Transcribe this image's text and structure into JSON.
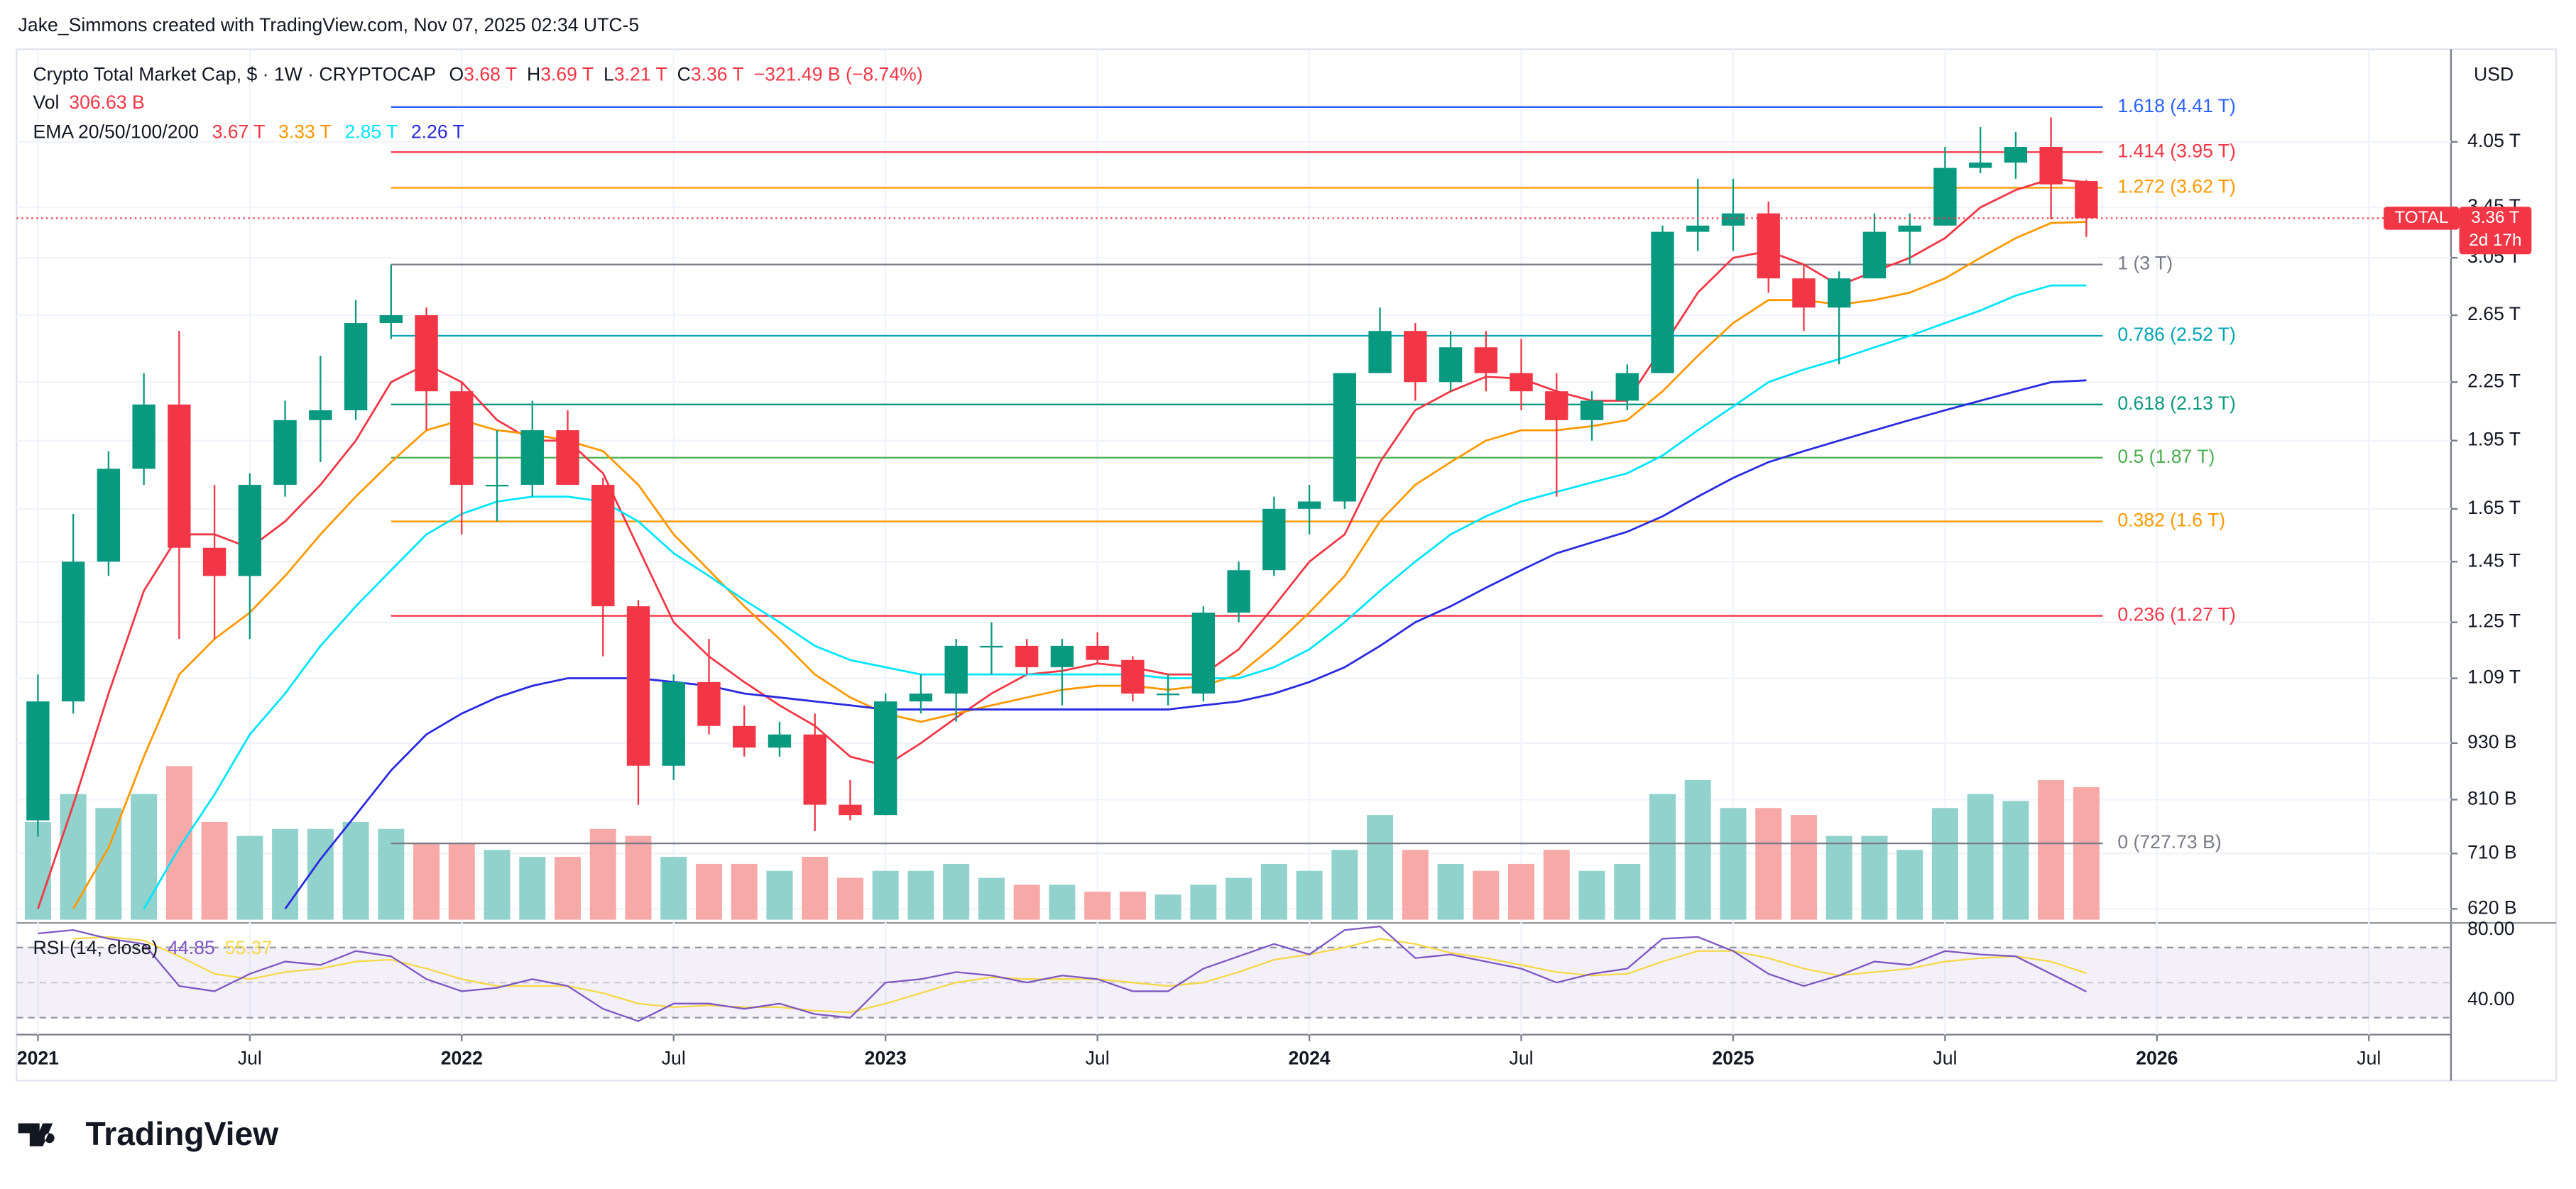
{
  "header": {
    "attribution": "Jake_Simmons created with TradingView.com, Nov 07, 2025 02:34 UTC-5"
  },
  "chart_data": {
    "type": "candlestick",
    "title": "Crypto Total Market Cap, $ · 1W · CRYPTOCAP",
    "ohlc_legend": [
      {
        "key": "O",
        "value": 3.68,
        "label": "3.68 T"
      },
      {
        "key": "H",
        "value": 3.69,
        "label": "3.69 T"
      },
      {
        "key": "L",
        "value": 3.21,
        "label": "3.21 T"
      },
      {
        "key": "C",
        "value": 3.36,
        "label": "3.36 T"
      }
    ],
    "change_label": "−321.49 B (−8.74%)",
    "volume_legend": {
      "name": "Vol",
      "label": "306.63 B"
    },
    "ema_legend": "EMA 20/50/100/200",
    "currency": "USD",
    "x": [
      "2021-01",
      "2021-02",
      "2021-03",
      "2021-04",
      "2021-05",
      "2021-06",
      "2021-07",
      "2021-08",
      "2021-09",
      "2021-10",
      "2021-11",
      "2021-12",
      "2022-01",
      "2022-02",
      "2022-03",
      "2022-04",
      "2022-05",
      "2022-06",
      "2022-07",
      "2022-08",
      "2022-09",
      "2022-10",
      "2022-11",
      "2022-12",
      "2023-01",
      "2023-02",
      "2023-03",
      "2023-04",
      "2023-05",
      "2023-06",
      "2023-07",
      "2023-08",
      "2023-09",
      "2023-10",
      "2023-11",
      "2023-12",
      "2024-01",
      "2024-02",
      "2024-03",
      "2024-04",
      "2024-05",
      "2024-06",
      "2024-07",
      "2024-08",
      "2024-09",
      "2024-10",
      "2024-11",
      "2024-12",
      "2025-01",
      "2025-02",
      "2025-03",
      "2025-04",
      "2025-05",
      "2025-06",
      "2025-07",
      "2025-08",
      "2025-09",
      "2025-10",
      "2025-11"
    ],
    "xlim": [
      "2020-12",
      "2026-09"
    ],
    "xticks": [
      {
        "value": "2021-01",
        "label": "2021"
      },
      {
        "value": "2021-07",
        "label": "Jul"
      },
      {
        "value": "2022-01",
        "label": "2022"
      },
      {
        "value": "2022-07",
        "label": "Jul"
      },
      {
        "value": "2023-01",
        "label": "2023"
      },
      {
        "value": "2023-07",
        "label": "Jul"
      },
      {
        "value": "2024-01",
        "label": "2024"
      },
      {
        "value": "2024-07",
        "label": "Jul"
      },
      {
        "value": "2025-01",
        "label": "2025"
      },
      {
        "value": "2025-07",
        "label": "Jul"
      },
      {
        "value": "2026-01",
        "label": "2026"
      },
      {
        "value": "2026-07",
        "label": "Jul"
      }
    ],
    "log_scale": true,
    "ylim": [
      0.599,
      5.08
    ],
    "yticks": [
      {
        "value": 4.05,
        "label": "4.05 T"
      },
      {
        "value": 3.45,
        "label": "3.45 T"
      },
      {
        "value": 3.05,
        "label": "3.05 T"
      },
      {
        "value": 2.65,
        "label": "2.65 T"
      },
      {
        "value": 2.25,
        "label": "2.25 T"
      },
      {
        "value": 1.95,
        "label": "1.95 T"
      },
      {
        "value": 1.65,
        "label": "1.65 T"
      },
      {
        "value": 1.45,
        "label": "1.45 T"
      },
      {
        "value": 1.25,
        "label": "1.25 T"
      },
      {
        "value": 1.09,
        "label": "1.09 T"
      },
      {
        "value": 0.93,
        "label": "930 B"
      },
      {
        "value": 0.81,
        "label": "810 B"
      },
      {
        "value": 0.71,
        "label": "710 B"
      },
      {
        "value": 0.62,
        "label": "620 B"
      }
    ],
    "grid": true,
    "up_color": "#089981",
    "down_color": "#f23645",
    "open": [
      0.77,
      1.03,
      1.45,
      1.82,
      2.13,
      1.5,
      1.4,
      1.75,
      2.05,
      2.1,
      2.6,
      2.65,
      2.2,
      1.75,
      1.75,
      2.0,
      1.75,
      1.3,
      0.88,
      1.08,
      0.97,
      0.92,
      0.95,
      0.8,
      0.78,
      1.03,
      1.05,
      1.18,
      1.18,
      1.12,
      1.18,
      1.14,
      1.05,
      1.05,
      1.28,
      1.42,
      1.65,
      1.68,
      2.3,
      2.55,
      2.25,
      2.45,
      2.3,
      2.2,
      2.05,
      2.15,
      2.3,
      3.25,
      3.3,
      3.4,
      2.9,
      2.7,
      2.9,
      3.25,
      3.3,
      3.8,
      3.85,
      4.0,
      3.68
    ],
    "high": [
      1.1,
      1.63,
      1.9,
      2.3,
      2.55,
      1.75,
      1.8,
      2.15,
      2.4,
      2.75,
      3.0,
      2.7,
      2.25,
      2.0,
      2.15,
      2.1,
      1.78,
      1.32,
      1.1,
      1.2,
      1.02,
      0.98,
      1.0,
      0.85,
      1.05,
      1.1,
      1.2,
      1.25,
      1.2,
      1.2,
      1.22,
      1.15,
      1.1,
      1.3,
      1.45,
      1.7,
      1.75,
      2.3,
      2.7,
      2.6,
      2.55,
      2.55,
      2.5,
      2.3,
      2.2,
      2.35,
      3.3,
      3.7,
      3.7,
      3.5,
      3.0,
      2.95,
      3.4,
      3.4,
      4.0,
      4.2,
      4.15,
      4.3,
      3.69
    ],
    "low": [
      0.74,
      1.0,
      1.4,
      1.75,
      1.2,
      1.2,
      1.2,
      1.7,
      1.85,
      2.05,
      2.5,
      2.0,
      1.55,
      1.6,
      1.7,
      1.75,
      1.15,
      0.8,
      0.85,
      0.95,
      0.9,
      0.9,
      0.75,
      0.77,
      0.78,
      1.0,
      0.98,
      1.1,
      1.1,
      1.02,
      1.13,
      1.03,
      1.02,
      1.03,
      1.25,
      1.4,
      1.55,
      1.65,
      2.3,
      2.15,
      2.2,
      2.2,
      2.1,
      1.7,
      1.95,
      2.1,
      2.3,
      3.1,
      3.1,
      2.8,
      2.55,
      2.35,
      2.9,
      3.0,
      3.3,
      3.75,
      3.7,
      3.35,
      3.21
    ],
    "close": [
      1.03,
      1.45,
      1.82,
      2.13,
      1.5,
      1.4,
      1.75,
      2.05,
      2.1,
      2.6,
      2.65,
      2.2,
      1.75,
      1.75,
      2.0,
      1.75,
      1.3,
      0.88,
      1.08,
      0.97,
      0.92,
      0.95,
      0.8,
      0.78,
      1.03,
      1.05,
      1.18,
      1.18,
      1.12,
      1.18,
      1.14,
      1.05,
      1.05,
      1.28,
      1.42,
      1.65,
      1.68,
      2.3,
      2.55,
      2.25,
      2.45,
      2.3,
      2.2,
      2.05,
      2.15,
      2.3,
      3.25,
      3.3,
      3.4,
      2.9,
      2.7,
      2.9,
      3.25,
      3.3,
      3.8,
      3.85,
      4.0,
      3.65,
      3.36
    ],
    "volume": {
      "values": [
        700,
        900,
        800,
        900,
        1100,
        700,
        600,
        650,
        650,
        700,
        650,
        550,
        550,
        500,
        450,
        450,
        650,
        600,
        450,
        400,
        400,
        350,
        450,
        300,
        350,
        350,
        400,
        300,
        250,
        250,
        200,
        200,
        180,
        250,
        300,
        400,
        350,
        500,
        750,
        500,
        400,
        350,
        400,
        500,
        350,
        400,
        900,
        1000,
        800,
        800,
        750,
        600,
        600,
        500,
        800,
        900,
        850,
        1000,
        950
      ],
      "ylim": [
        0,
        2000
      ],
      "up_color": "#92d2cc",
      "down_color": "#f7a9a7"
    },
    "series": [
      {
        "color": "#f23645",
        "value_label": "3.67 T",
        "values": [
          0.62,
          0.8,
          1.05,
          1.35,
          1.55,
          1.55,
          1.5,
          1.6,
          1.75,
          1.95,
          2.25,
          2.35,
          2.25,
          2.05,
          1.95,
          1.95,
          1.8,
          1.5,
          1.25,
          1.15,
          1.08,
          1.02,
          0.97,
          0.9,
          0.88,
          0.93,
          0.99,
          1.05,
          1.1,
          1.11,
          1.13,
          1.12,
          1.1,
          1.1,
          1.17,
          1.3,
          1.45,
          1.55,
          1.85,
          2.1,
          2.2,
          2.28,
          2.27,
          2.2,
          2.15,
          2.15,
          2.45,
          2.8,
          3.05,
          3.1,
          3.0,
          2.85,
          2.95,
          3.05,
          3.2,
          3.45,
          3.6,
          3.7,
          3.67
        ]
      },
      {
        "color": "#ff9800",
        "value_label": "3.33 T",
        "values": [
          null,
          0.62,
          0.72,
          0.9,
          1.1,
          1.2,
          1.28,
          1.4,
          1.55,
          1.7,
          1.85,
          2.0,
          2.05,
          2.0,
          1.98,
          1.95,
          1.9,
          1.75,
          1.55,
          1.42,
          1.3,
          1.2,
          1.1,
          1.04,
          1.0,
          0.98,
          1.0,
          1.02,
          1.04,
          1.06,
          1.07,
          1.07,
          1.06,
          1.07,
          1.1,
          1.18,
          1.28,
          1.4,
          1.6,
          1.75,
          1.85,
          1.95,
          2.0,
          2.0,
          2.02,
          2.05,
          2.2,
          2.4,
          2.6,
          2.75,
          2.75,
          2.72,
          2.75,
          2.8,
          2.9,
          3.05,
          3.2,
          3.32,
          3.33
        ]
      },
      {
        "color": "#00e5ff",
        "value_label": "2.85 T",
        "values": [
          null,
          null,
          null,
          0.62,
          0.72,
          0.82,
          0.95,
          1.05,
          1.18,
          1.3,
          1.42,
          1.55,
          1.63,
          1.68,
          1.7,
          1.7,
          1.68,
          1.6,
          1.48,
          1.4,
          1.32,
          1.25,
          1.18,
          1.14,
          1.12,
          1.1,
          1.1,
          1.1,
          1.1,
          1.1,
          1.1,
          1.1,
          1.09,
          1.09,
          1.09,
          1.12,
          1.17,
          1.25,
          1.35,
          1.45,
          1.55,
          1.62,
          1.68,
          1.72,
          1.76,
          1.8,
          1.88,
          2.0,
          2.12,
          2.25,
          2.32,
          2.38,
          2.45,
          2.52,
          2.6,
          2.68,
          2.78,
          2.85,
          2.85
        ]
      },
      {
        "color": "#2929e0",
        "value_label": "2.26 T",
        "values": [
          null,
          null,
          null,
          null,
          null,
          null,
          null,
          0.62,
          0.7,
          0.78,
          0.87,
          0.95,
          1.0,
          1.04,
          1.07,
          1.09,
          1.09,
          1.09,
          1.08,
          1.07,
          1.05,
          1.04,
          1.03,
          1.02,
          1.01,
          1.01,
          1.01,
          1.01,
          1.01,
          1.01,
          1.01,
          1.01,
          1.01,
          1.02,
          1.03,
          1.05,
          1.08,
          1.12,
          1.18,
          1.25,
          1.3,
          1.36,
          1.42,
          1.48,
          1.52,
          1.56,
          1.62,
          1.7,
          1.78,
          1.85,
          1.9,
          1.95,
          2.0,
          2.05,
          2.1,
          2.15,
          2.2,
          2.25,
          2.26
        ]
      }
    ],
    "fib_levels": [
      {
        "label": "1.618 (4.41 T)",
        "value": 4.41,
        "color": "#2962ff"
      },
      {
        "label": "1.414 (3.95 T)",
        "value": 3.95,
        "color": "#f23645"
      },
      {
        "label": "1.272 (3.62 T)",
        "value": 3.62,
        "color": "#ff9800"
      },
      {
        "label": "1 (3 T)",
        "value": 3,
        "color": "#787b86"
      },
      {
        "label": "0.786 (2.52 T)",
        "value": 2.52,
        "color": "#00a5b5"
      },
      {
        "label": "0.618 (2.13 T)",
        "value": 2.13,
        "color": "#089981"
      },
      {
        "label": "0.5 (1.87 T)",
        "value": 1.87,
        "color": "#4caf50"
      },
      {
        "label": "0.382 (1.6 T)",
        "value": 1.6,
        "color": "#ff9800"
      },
      {
        "label": "0.236 (1.27 T)",
        "value": 1.27,
        "color": "#f23645"
      },
      {
        "label": "0 (727.73 B)",
        "value": 0.72773,
        "color": "#787b86"
      }
    ],
    "fib_range": [
      "2021-11",
      "2025-11"
    ],
    "last_price": {
      "tag": "TOTAL",
      "value": 3.36,
      "label": "3.36 T",
      "countdown": "2d 17h",
      "color": "#f23645"
    },
    "rsi": {
      "title": "RSI (14, close)",
      "value_label": "44.85",
      "ma_label": "55.37",
      "color": "#7e57c2",
      "ma_color": "#f5d94a",
      "ylim": [
        25,
        84
      ],
      "yticks": [
        {
          "value": 80,
          "label": "80.00"
        },
        {
          "value": 40,
          "label": "40.00"
        }
      ],
      "bands": [
        70,
        50,
        30
      ],
      "values": [
        78,
        80,
        75,
        72,
        48,
        45,
        55,
        62,
        60,
        68,
        65,
        52,
        45,
        47,
        52,
        48,
        35,
        28,
        38,
        38,
        35,
        38,
        32,
        30,
        50,
        52,
        56,
        54,
        50,
        54,
        52,
        45,
        45,
        58,
        65,
        72,
        66,
        80,
        82,
        64,
        66,
        62,
        58,
        50,
        55,
        58,
        75,
        76,
        68,
        55,
        48,
        54,
        62,
        60,
        68,
        66,
        65,
        55,
        44.85
      ],
      "ma_values": [
        null,
        75,
        76,
        74,
        65,
        55,
        52,
        56,
        58,
        62,
        63,
        58,
        52,
        48,
        48,
        48,
        44,
        38,
        36,
        37,
        36,
        36,
        34,
        33,
        38,
        44,
        50,
        53,
        52,
        52,
        52,
        50,
        48,
        50,
        56,
        63,
        66,
        70,
        75,
        72,
        67,
        64,
        60,
        56,
        54,
        55,
        62,
        68,
        68,
        64,
        58,
        54,
        56,
        58,
        62,
        64,
        65,
        62,
        55.37
      ]
    }
  },
  "footer": {
    "brand": "TradingView"
  }
}
